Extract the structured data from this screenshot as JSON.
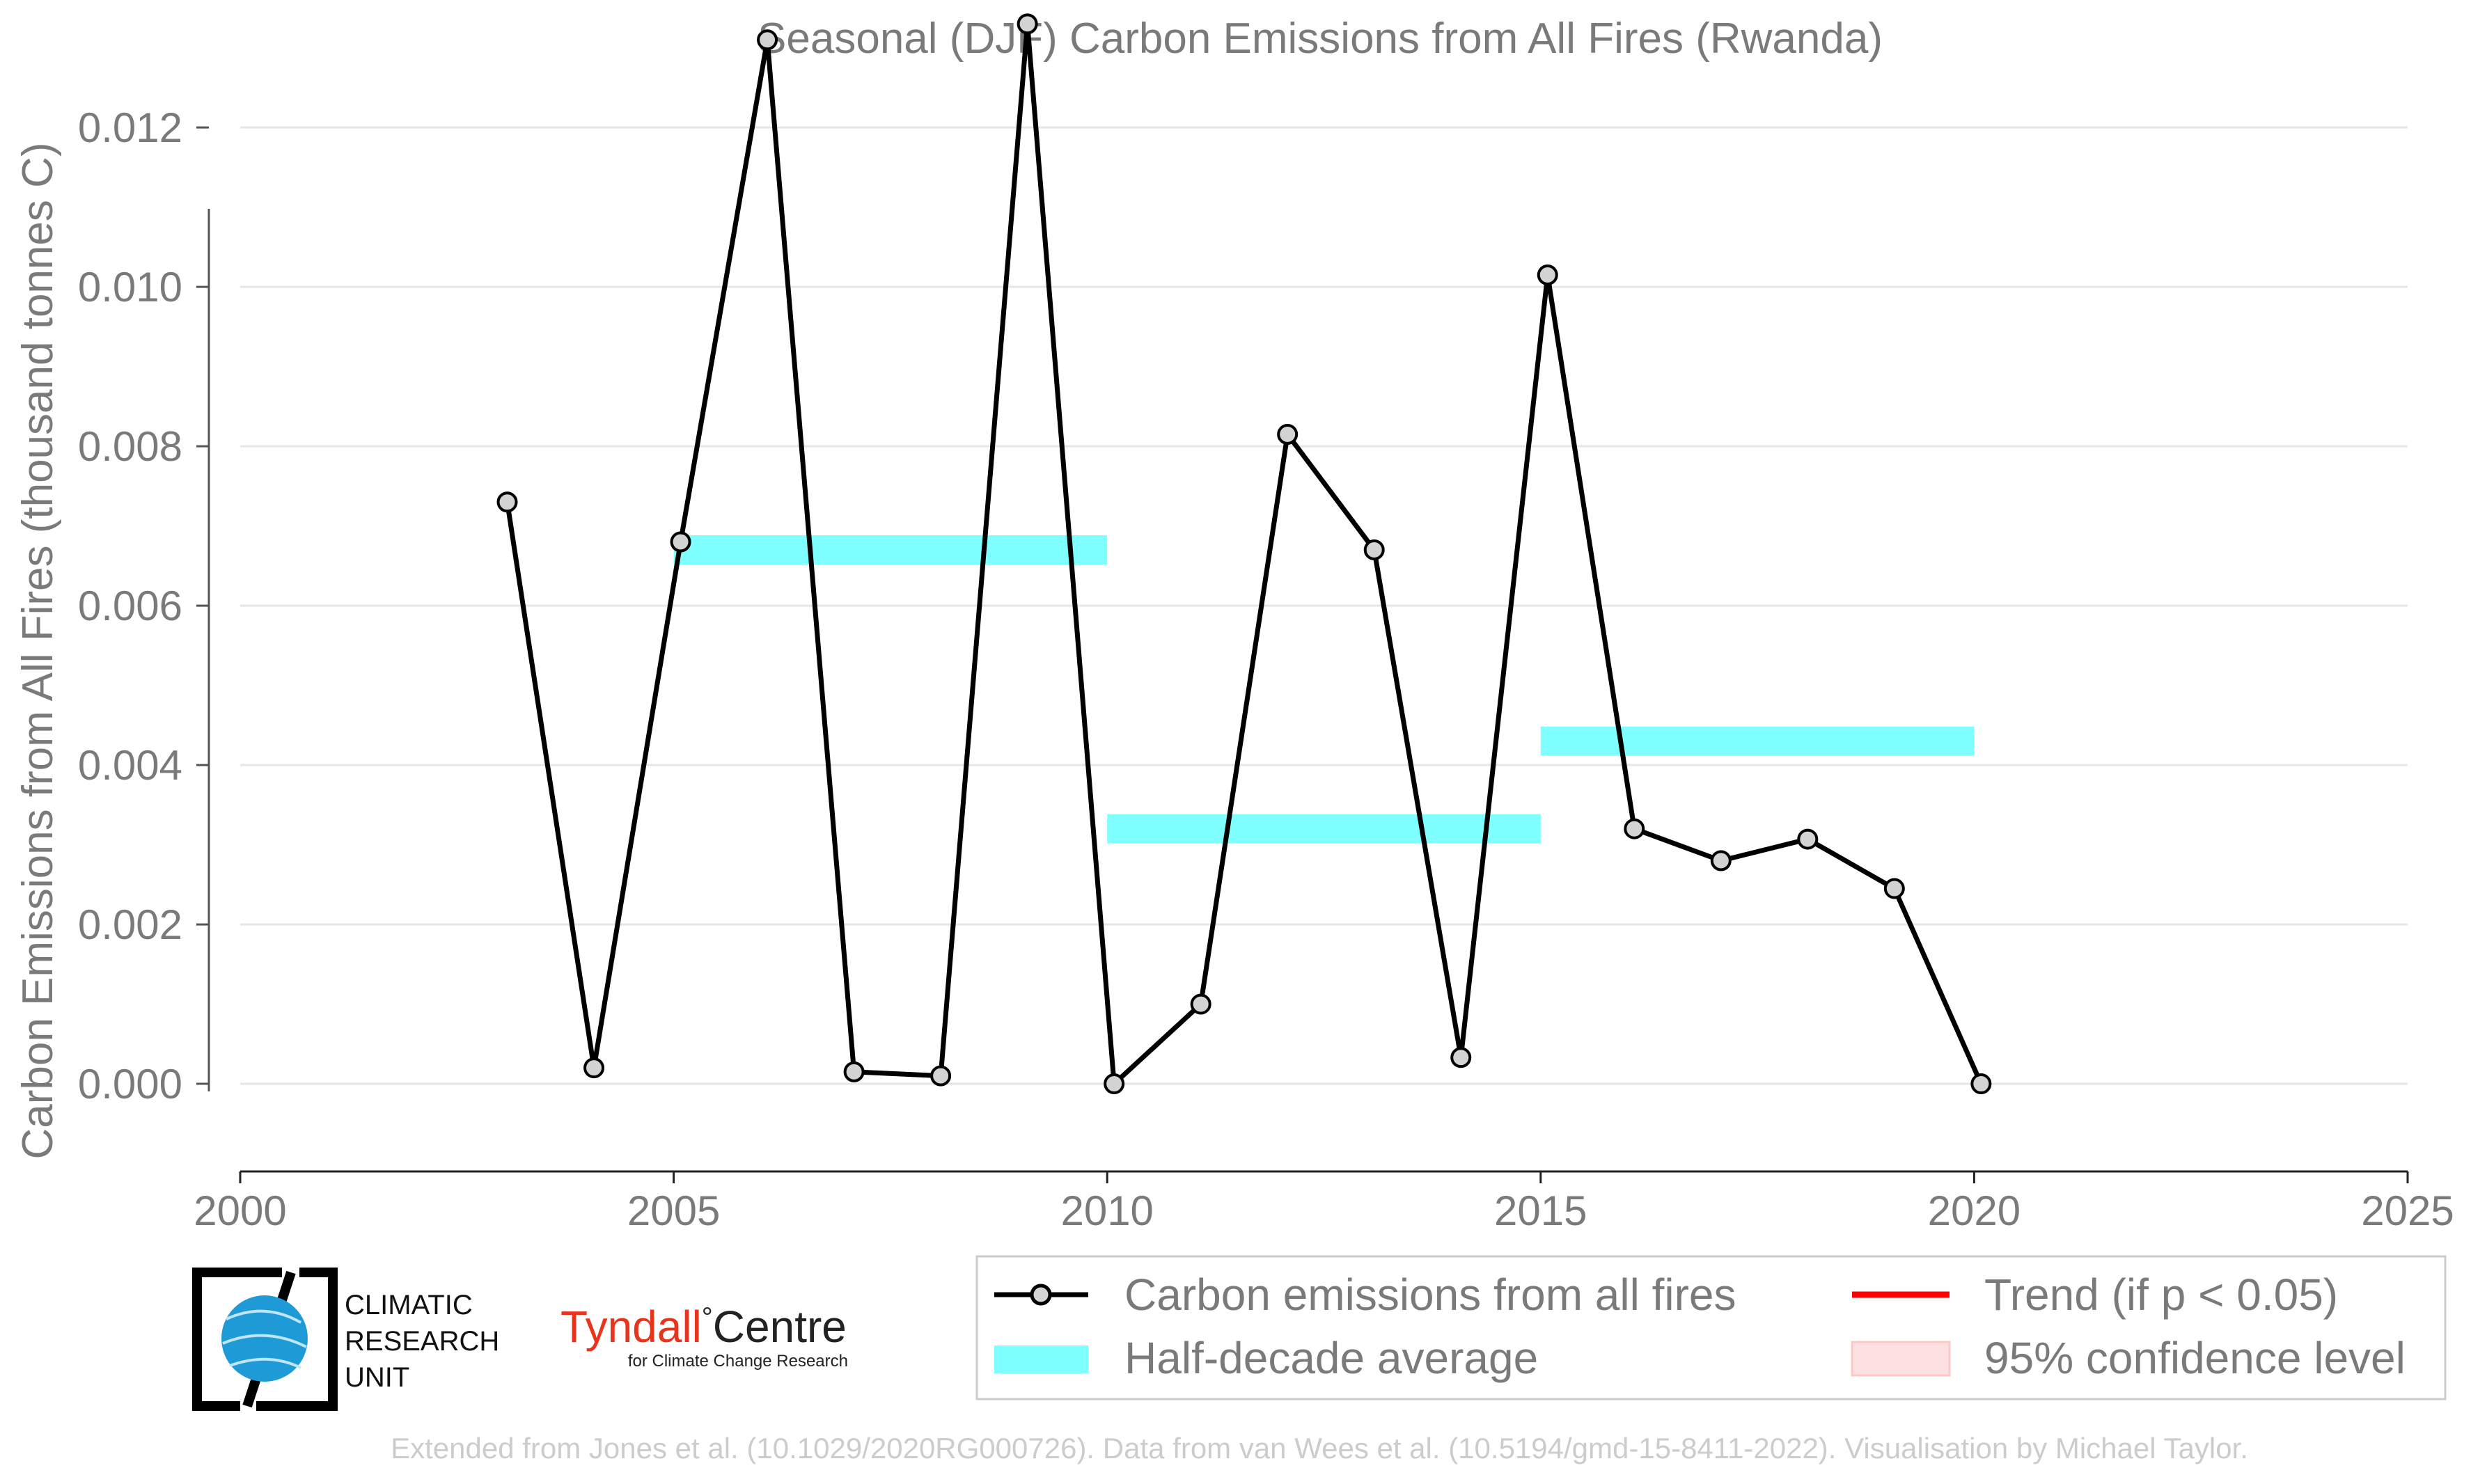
{
  "chart_data": {
    "type": "line",
    "title": "Seasonal (DJF) Carbon Emissions from All Fires (Rwanda)",
    "xlabel": "",
    "ylabel": "Carbon Emissions from All Fires (thousand tonnes C)",
    "xlim": [
      2000,
      2025
    ],
    "ylim": [
      -0.0011,
      0.0136
    ],
    "x_ticks": [
      "2000",
      "2005",
      "2010",
      "2015",
      "2020",
      "2025"
    ],
    "y_ticks": [
      "0.000",
      "0.002",
      "0.004",
      "0.006",
      "0.008",
      "0.010",
      "0.012"
    ],
    "grid": "horizontal",
    "series": [
      {
        "name": "Carbon emissions from all fires",
        "color": "#000000",
        "marker_color": "#d3d3d3",
        "x": [
          2003,
          2004,
          2005,
          2006,
          2007,
          2008,
          2009,
          2010,
          2011,
          2012,
          2013,
          2014,
          2015,
          2016,
          2017,
          2018,
          2019,
          2020
        ],
        "y": [
          0.0073,
          0.0002,
          0.0068,
          0.0131,
          0.00015,
          0.0001,
          0.0133,
          0.0,
          0.001,
          0.00815,
          0.0067,
          0.00033,
          0.01015,
          0.0032,
          0.0028,
          0.00307,
          0.00245,
          0.0
        ]
      }
    ],
    "half_decade_average": {
      "name": "Half-decade average",
      "color": "#7fffff",
      "segments": [
        {
          "x_start": 2005,
          "x_end": 2010,
          "y": 0.0067
        },
        {
          "x_start": 2010,
          "x_end": 2015,
          "y": 0.0032
        },
        {
          "x_start": 2015,
          "x_end": 2020,
          "y": 0.0043
        }
      ]
    },
    "legend": {
      "placement": "bottom-right",
      "entries": [
        {
          "label": "Carbon emissions from all fires",
          "kind": "line-marker",
          "color": "#000000"
        },
        {
          "label": "Trend (if p < 0.05)",
          "kind": "line",
          "color": "#ff0000"
        },
        {
          "label": "Half-decade average",
          "kind": "band",
          "color": "#7fffff"
        },
        {
          "label": "95% confidence level",
          "kind": "patch",
          "color": "#ffe0e0"
        }
      ]
    }
  },
  "logos": {
    "cru": [
      "CLIMATIC",
      "RESEARCH",
      "UNIT"
    ],
    "tyndall_main": "Tyndall",
    "tyndall_degree": "°",
    "tyndall_centre": "Centre",
    "tyndall_sub": "for Climate Change Research"
  },
  "footer": "Extended from Jones et al. (10.1029/2020RG000726). Data from van Wees et al. (10.5194/gmd-15-8411-2022). Visualisation by Michael Taylor."
}
